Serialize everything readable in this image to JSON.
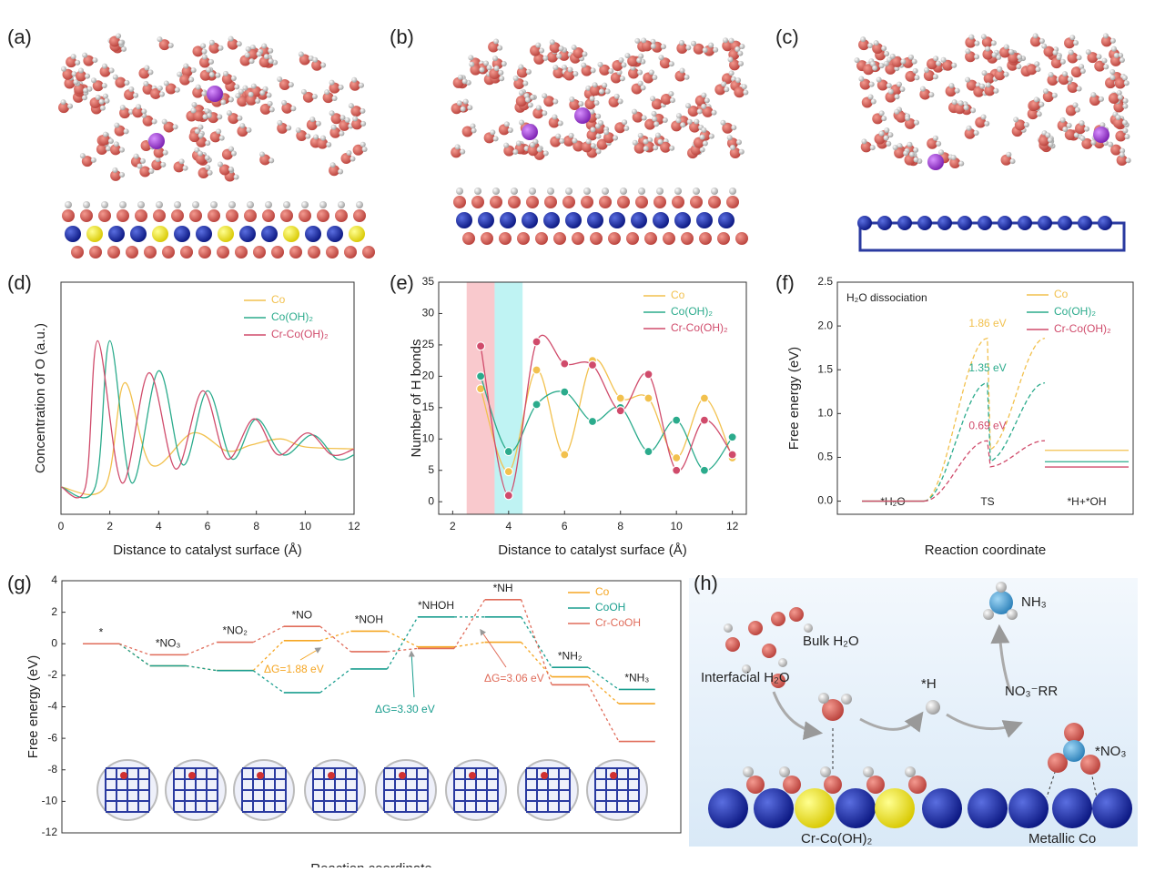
{
  "panel_labels": [
    "(a)",
    "(b)",
    "(c)",
    "(d)",
    "(e)",
    "(f)",
    "(g)",
    "(h)"
  ],
  "chart_data": [
    {
      "type": "line",
      "smooth": true,
      "xlabel": "Distance to catalyst surface (Å)",
      "ylabel": "Concentration of O (a.u.)",
      "xlim": [
        0,
        12
      ],
      "xticks": [
        0,
        2,
        4,
        6,
        8,
        10,
        12
      ],
      "ylim": [
        0,
        10
      ],
      "legend": "upper right",
      "series": [
        {
          "name": "Co",
          "color": "#f2c14e",
          "x": [
            0,
            1.8,
            2.6,
            3.7,
            5.4,
            6.8,
            7.8,
            9.0,
            10.0,
            12
          ],
          "values": [
            0,
            0,
            5.2,
            1.1,
            2.7,
            1.8,
            2.1,
            2.4,
            2.0,
            1.9
          ]
        },
        {
          "name": "Co(OH)₂",
          "color": "#2bab8c",
          "x": [
            0,
            1.4,
            2.0,
            2.9,
            4.0,
            5.0,
            6.0,
            7.0,
            8.0,
            9.1,
            10.3,
            11.3,
            12
          ],
          "values": [
            0,
            0,
            7.3,
            0.2,
            5.8,
            1.1,
            4.8,
            1.4,
            3.4,
            1.6,
            2.6,
            1.4,
            1.6
          ]
        },
        {
          "name": "Cr-Co(OH)₂",
          "color": "#d04b6b",
          "x": [
            0,
            1.0,
            1.5,
            2.5,
            3.6,
            4.7,
            5.8,
            6.8,
            7.9,
            8.9,
            10.1,
            11.1,
            12
          ],
          "values": [
            0,
            0,
            7.3,
            0.2,
            5.7,
            0.9,
            4.8,
            1.4,
            3.4,
            1.6,
            2.7,
            1.6,
            1.9
          ]
        }
      ]
    },
    {
      "type": "line",
      "smooth": true,
      "markers": true,
      "xlabel": "Distance to catalyst surface (Å)",
      "ylabel": "Number of H bonds",
      "xlim": [
        1.5,
        12.5
      ],
      "xticks": [
        2,
        4,
        6,
        8,
        10,
        12
      ],
      "ylim": [
        -2,
        35
      ],
      "yticks": [
        0,
        5,
        10,
        15,
        20,
        25,
        30,
        35
      ],
      "legend": "upper right",
      "bands": [
        {
          "range": [
            2.5,
            3.5
          ],
          "color": "#f9c9cd"
        },
        {
          "range": [
            3.5,
            4.5
          ],
          "color": "#bff3f3"
        }
      ],
      "x": [
        3,
        4,
        5,
        6,
        7,
        8,
        9,
        10,
        11,
        12
      ],
      "series": [
        {
          "name": "Co",
          "color": "#f2c14e",
          "values": [
            18,
            4.8,
            21,
            7.5,
            22.5,
            16.5,
            16.5,
            7,
            16.5,
            7
          ]
        },
        {
          "name": "Co(OH)₂",
          "color": "#2bab8c",
          "values": [
            20,
            8,
            15.5,
            17.5,
            12.8,
            15,
            8,
            13,
            5,
            10.3
          ]
        },
        {
          "name": "Cr-Co(OH)₂",
          "color": "#d04b6b",
          "values": [
            24.8,
            1,
            25.5,
            22,
            21.8,
            14.5,
            20.3,
            5,
            13,
            7.5
          ]
        }
      ]
    },
    {
      "type": "energy_profile",
      "annotation": "H₂O dissociation",
      "xlabel": "Reaction coordinate",
      "ylabel": "Free energy (eV)",
      "categories": [
        "*H₂O",
        "TS",
        "*H+*OH"
      ],
      "ylim": [
        -0.15,
        2.5
      ],
      "yticks": [
        {
          "value": 0,
          "label": "0.0"
        },
        0.5,
        {
          "value": 1,
          "label": "1.0"
        },
        1.5,
        {
          "value": 2,
          "label": "2.0"
        },
        2.5
      ],
      "legend": "upper right",
      "series": [
        {
          "name": "Co",
          "color": "#f2c14e",
          "values": [
            0,
            1.86,
            0.58
          ],
          "value_labels": [
            null,
            "1.86 eV",
            null
          ]
        },
        {
          "name": "Co(OH)₂",
          "color": "#2bab8c",
          "values": [
            0,
            1.35,
            0.45
          ],
          "value_labels": [
            null,
            "1.35 eV",
            null
          ]
        },
        {
          "name": "Cr-Co(OH)₂",
          "color": "#d04b6b",
          "values": [
            0,
            0.69,
            0.39
          ],
          "value_labels": [
            null,
            "0.69 eV",
            null
          ]
        }
      ]
    },
    {
      "type": "step_levels",
      "xlabel": "Reaction coordinate",
      "ylabel": "Free energy (eV)",
      "categories": [
        "*",
        "*NO₃",
        "*NO₂",
        "*NO",
        "*NOH",
        "*NHOH",
        "*NH",
        "*NH₂",
        "*NH₃"
      ],
      "ylim": [
        -12,
        4
      ],
      "yticks": [
        -12,
        -10,
        -8,
        -6,
        -4,
        -2,
        0,
        2,
        4
      ],
      "legend": "upper right",
      "series": [
        {
          "name": "Co",
          "color": "#f5a623",
          "values": [
            0,
            -1.4,
            -1.7,
            0.2,
            0.8,
            -0.2,
            0.1,
            -2.1,
            -3.8
          ]
        },
        {
          "name": "CoOH",
          "color": "#1a9e8f",
          "values": [
            0,
            -1.4,
            -1.7,
            -3.1,
            -1.6,
            1.7,
            1.7,
            -1.5,
            -2.9
          ]
        },
        {
          "name": "Cr-CoOH",
          "color": "#e06c5a",
          "values": [
            0,
            -0.7,
            0.1,
            1.1,
            -0.5,
            -0.3,
            2.8,
            -2.6,
            -6.2
          ]
        }
      ],
      "annotations": [
        {
          "text": "ΔG=1.88 eV",
          "color": "#f5a623"
        },
        {
          "text": "ΔG=3.30 eV",
          "color": "#1a9e8f"
        },
        {
          "text": "ΔG=3.06 eV",
          "color": "#e06c5a"
        }
      ]
    }
  ],
  "diagram": {
    "bulk": "Bulk H₂O",
    "nh3": "NH₃",
    "rr": "NO₃⁻RR",
    "interfacial": "Interfacial H₂O",
    "h": "*H",
    "no3": "*NO₃",
    "left": "Cr-Co(OH)₂",
    "right": "Metallic Co"
  }
}
